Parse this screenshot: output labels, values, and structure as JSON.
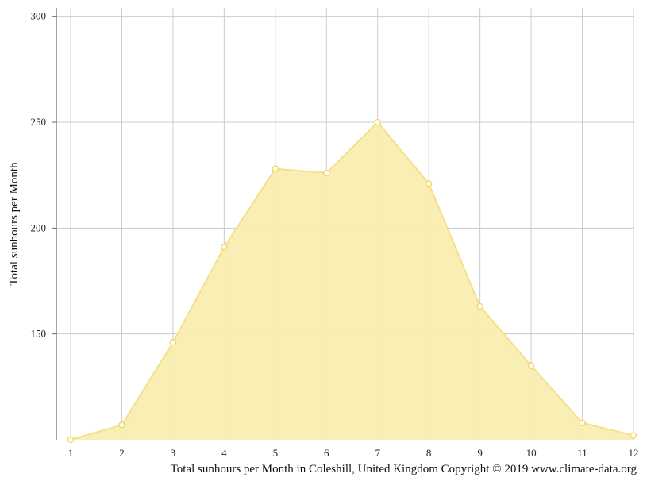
{
  "chart_data": {
    "type": "area",
    "x": [
      1,
      2,
      3,
      4,
      5,
      6,
      7,
      8,
      9,
      10,
      11,
      12
    ],
    "series": [
      {
        "values": [
          100,
          107,
          146,
          191,
          228,
          226,
          250,
          221,
          163,
          135,
          108,
          102
        ]
      }
    ],
    "ylabel": "Total sunhours per Month",
    "xlabel": "",
    "yticks": [
      150,
      200,
      250,
      300
    ],
    "ylim": [
      100,
      304
    ],
    "xlim": [
      1,
      12
    ],
    "grid": true,
    "fill_color": "#f9eeb0",
    "line_color": "#f5e08a",
    "point_color": "#f2d55b",
    "grid_color": "#cccccc"
  },
  "caption": "Total sunhours per Month in Coleshill, United Kingdom Copyright © 2019 www.climate-data.org"
}
